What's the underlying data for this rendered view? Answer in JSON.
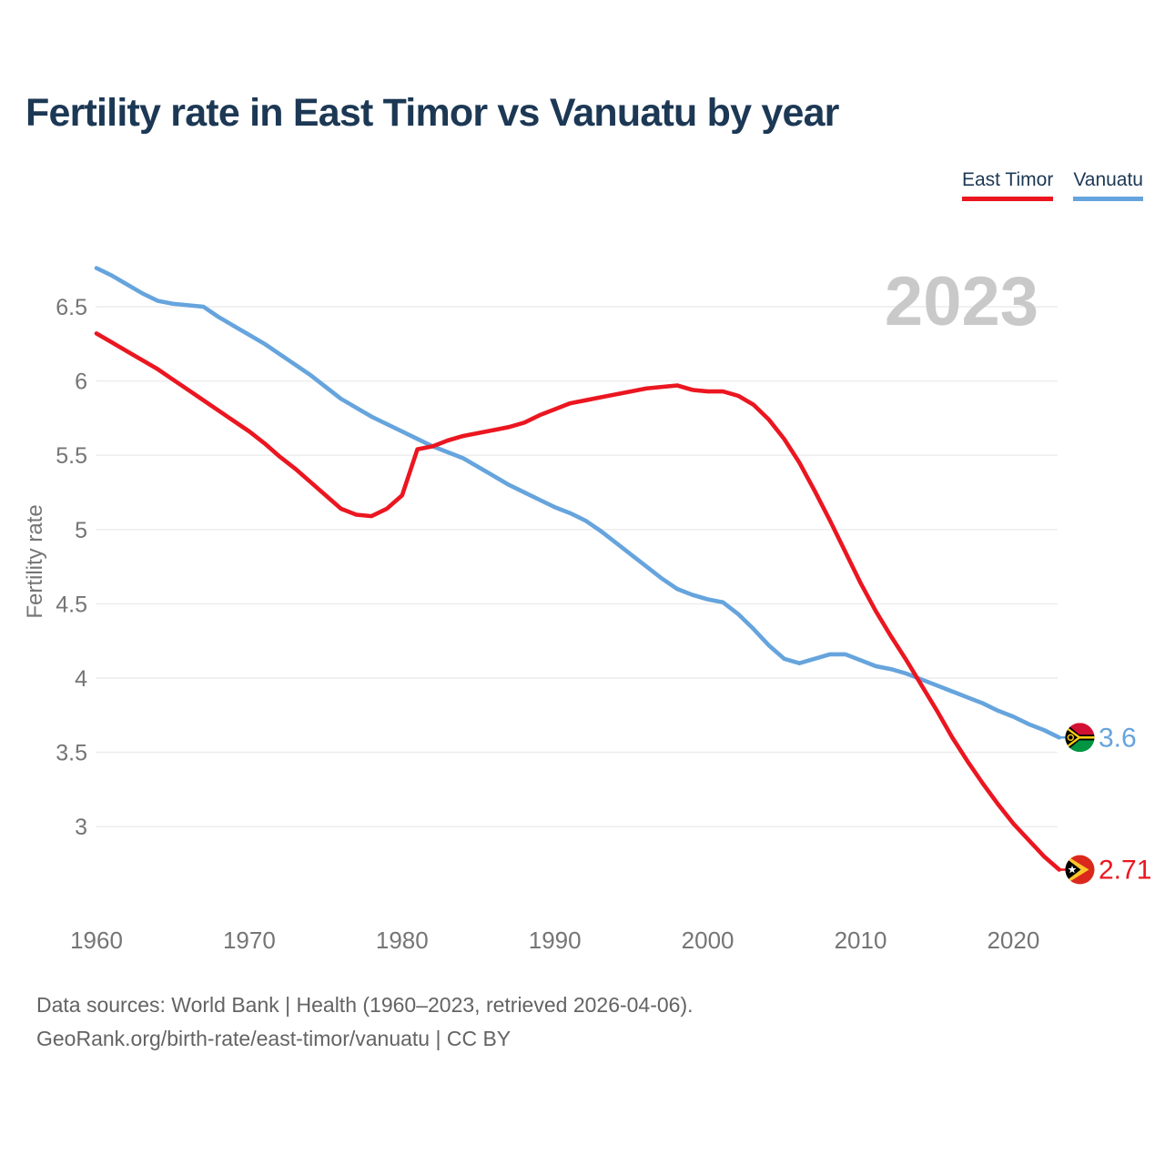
{
  "title": "Fertility rate in East Timor vs Vanuatu by year",
  "watermark": "2023",
  "source": {
    "line1": "Data sources: World Bank | Health (1960–2023, retrieved 2026-04-06).",
    "line2": "GeoRank.org/birth-rate/east-timor/vanuatu | CC BY"
  },
  "theme": {
    "title_color": "#1c3854",
    "tick_color": "#757575",
    "grid_color": "#ececec",
    "watermark_color": "#c9c9c9",
    "source_color": "#636363",
    "background": "#ffffff"
  },
  "chart_data": {
    "type": "line",
    "title": "Fertility rate in East Timor vs Vanuatu by year",
    "xlabel": "",
    "ylabel": "Fertility rate",
    "grid": "horizontal",
    "legend_position": "top-right",
    "xlim": [
      1960,
      2023
    ],
    "ylim": [
      2.6,
      6.9
    ],
    "x_ticks": [
      1960,
      1970,
      1980,
      1990,
      2000,
      2010,
      2020
    ],
    "y_ticks": [
      6.5,
      6,
      5.5,
      5,
      4.5,
      4,
      3.5,
      3
    ],
    "x": [
      1960,
      1961,
      1962,
      1963,
      1964,
      1965,
      1966,
      1967,
      1968,
      1969,
      1970,
      1971,
      1972,
      1973,
      1974,
      1975,
      1976,
      1977,
      1978,
      1979,
      1980,
      1981,
      1982,
      1983,
      1984,
      1985,
      1986,
      1987,
      1988,
      1989,
      1990,
      1991,
      1992,
      1993,
      1994,
      1995,
      1996,
      1997,
      1998,
      1999,
      2000,
      2001,
      2002,
      2003,
      2004,
      2005,
      2006,
      2007,
      2008,
      2009,
      2010,
      2011,
      2012,
      2013,
      2014,
      2015,
      2016,
      2017,
      2018,
      2019,
      2020,
      2021,
      2022,
      2023
    ],
    "series": [
      {
        "name": "East Timor",
        "color": "#eb1620",
        "end_label": "2.71",
        "flag": "east-timor",
        "values": [
          6.32,
          6.26,
          6.2,
          6.14,
          6.08,
          6.01,
          5.94,
          5.87,
          5.8,
          5.73,
          5.66,
          5.58,
          5.49,
          5.41,
          5.32,
          5.23,
          5.14,
          5.1,
          5.09,
          5.14,
          5.23,
          5.54,
          5.56,
          5.6,
          5.63,
          5.65,
          5.67,
          5.69,
          5.72,
          5.77,
          5.81,
          5.85,
          5.87,
          5.89,
          5.91,
          5.93,
          5.95,
          5.96,
          5.97,
          5.94,
          5.93,
          5.93,
          5.9,
          5.84,
          5.74,
          5.61,
          5.45,
          5.26,
          5.06,
          4.85,
          4.64,
          4.45,
          4.28,
          4.12,
          3.95,
          3.78,
          3.6,
          3.44,
          3.29,
          3.15,
          3.02,
          2.91,
          2.8,
          2.71
        ]
      },
      {
        "name": "Vanuatu",
        "color": "#66a4dd",
        "end_label": "3.6",
        "flag": "vanuatu",
        "values": [
          6.76,
          6.71,
          6.65,
          6.59,
          6.54,
          6.52,
          6.51,
          6.5,
          6.43,
          6.37,
          6.31,
          6.25,
          6.18,
          6.11,
          6.04,
          5.96,
          5.88,
          5.82,
          5.76,
          5.71,
          5.66,
          5.61,
          5.56,
          5.52,
          5.48,
          5.42,
          5.36,
          5.3,
          5.25,
          5.2,
          5.15,
          5.11,
          5.06,
          4.99,
          4.91,
          4.83,
          4.75,
          4.67,
          4.6,
          4.56,
          4.53,
          4.51,
          4.43,
          4.33,
          4.22,
          4.13,
          4.1,
          4.13,
          4.16,
          4.16,
          4.12,
          4.08,
          4.06,
          4.03,
          3.99,
          3.95,
          3.91,
          3.87,
          3.83,
          3.78,
          3.74,
          3.69,
          3.65,
          3.6
        ]
      }
    ]
  }
}
